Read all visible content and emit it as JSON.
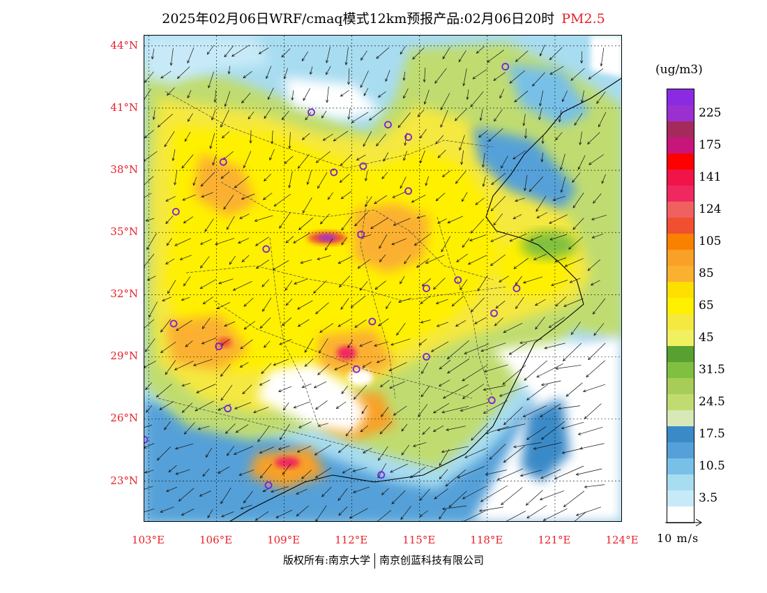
{
  "title": {
    "main": "2025年02月06日WRF/cmaq模式12km预报产品:02月06日20时",
    "pollutant": "PM2.5"
  },
  "map": {
    "lat_labels": [
      "44°N",
      "41°N",
      "38°N",
      "35°N",
      "32°N",
      "29°N",
      "26°N",
      "23°N"
    ],
    "lon_labels": [
      "103°E",
      "106°E",
      "109°E",
      "112°E",
      "115°E",
      "118°E",
      "121°E",
      "124°E"
    ],
    "lat_values": [
      44,
      41,
      38,
      35,
      32,
      29,
      26,
      23
    ],
    "lon_values": [
      103,
      106,
      109,
      112,
      115,
      118,
      121,
      124
    ],
    "extent": {
      "lon_min": 102.8,
      "lon_max": 124.0,
      "lat_min": 21.0,
      "lat_max": 44.5
    },
    "cities": [
      {
        "lon": 118.8,
        "lat": 43.0
      },
      {
        "lon": 110.2,
        "lat": 40.8
      },
      {
        "lon": 113.6,
        "lat": 40.2
      },
      {
        "lon": 114.5,
        "lat": 39.6
      },
      {
        "lon": 106.3,
        "lat": 38.4
      },
      {
        "lon": 111.2,
        "lat": 37.9
      },
      {
        "lon": 112.5,
        "lat": 38.2
      },
      {
        "lon": 114.5,
        "lat": 37.0
      },
      {
        "lon": 104.2,
        "lat": 36.0
      },
      {
        "lon": 112.4,
        "lat": 34.9
      },
      {
        "lon": 108.2,
        "lat": 34.2
      },
      {
        "lon": 115.3,
        "lat": 32.3
      },
      {
        "lon": 116.7,
        "lat": 32.7
      },
      {
        "lon": 119.3,
        "lat": 32.3
      },
      {
        "lon": 104.1,
        "lat": 30.6
      },
      {
        "lon": 112.9,
        "lat": 30.7
      },
      {
        "lon": 118.3,
        "lat": 31.1
      },
      {
        "lon": 106.1,
        "lat": 29.5
      },
      {
        "lon": 115.3,
        "lat": 29.0
      },
      {
        "lon": 112.2,
        "lat": 28.4
      },
      {
        "lon": 106.5,
        "lat": 26.5
      },
      {
        "lon": 118.2,
        "lat": 26.9
      },
      {
        "lon": 102.8,
        "lat": 25.0
      },
      {
        "lon": 113.3,
        "lat": 23.3
      },
      {
        "lon": 108.3,
        "lat": 22.8
      }
    ]
  },
  "colorbar": {
    "unit": "(ug/m3)",
    "colors": [
      "#8a2be2",
      "#9b30d0",
      "#a52a5c",
      "#c8157a",
      "#ff0000",
      "#f01448",
      "#f02860",
      "#f06060",
      "#f05030",
      "#fa8000",
      "#f8a028",
      "#fbb030",
      "#fee000",
      "#fff000",
      "#f5e840",
      "#f0f060",
      "#58a030",
      "#80c040",
      "#a8cc58",
      "#c0dc70",
      "#d8e8b8",
      "#3a8ac8",
      "#55a0d8",
      "#78c0e8",
      "#a8dcf0",
      "#c8eaf8",
      "#ffffff"
    ],
    "labels": [
      "225",
      "175",
      "141",
      "124",
      "105",
      "85",
      "65",
      "45",
      "31.5",
      "24.5",
      "17.5",
      "10.5",
      "3.5"
    ],
    "label_values": [
      225,
      175,
      141,
      124,
      105,
      85,
      65,
      45,
      31.5,
      24.5,
      17.5,
      10.5,
      3.5
    ]
  },
  "wind_reference": {
    "label": "10 m/s"
  },
  "copyright": {
    "left": "版权所有:南京大学",
    "right": "南京创蓝科技有限公司"
  }
}
